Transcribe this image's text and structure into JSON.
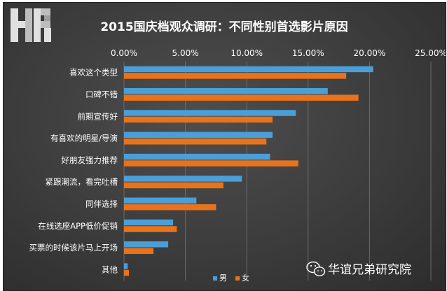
{
  "brand": {
    "logo_text": "HR"
  },
  "watermark": {
    "text": "华谊兄弟研究院"
  },
  "colors": {
    "male": "#4a9fd8",
    "female": "#e8731c",
    "grid": "#6a6a6a",
    "text": "#ffffff"
  },
  "chart_data": {
    "type": "bar",
    "orientation": "horizontal",
    "title": "2015国庆档观众调研：不同性别首选影片原因",
    "xlim": [
      0,
      0.25
    ],
    "xticks": [
      "0.00%",
      "5.00%",
      "10.00%",
      "15.00%",
      "20.00%",
      "25.00%"
    ],
    "xtick_values": [
      0,
      0.05,
      0.1,
      0.15,
      0.2,
      0.25
    ],
    "categories": [
      "喜欢这个类型",
      "口碑不错",
      "前期宣传好",
      "有喜欢的明星/导演",
      "好朋友强力推荐",
      "紧跟潮流，看完吐槽",
      "同伴选择",
      "在线选座APP低价促销",
      "买票的时候该片马上开场",
      "其他"
    ],
    "series": [
      {
        "name": "男",
        "values": [
          0.203,
          0.166,
          0.14,
          0.121,
          0.119,
          0.096,
          0.059,
          0.04,
          0.036,
          0.003
        ]
      },
      {
        "name": "女",
        "values": [
          0.181,
          0.191,
          0.121,
          0.116,
          0.142,
          0.081,
          0.075,
          0.043,
          0.024,
          0.004
        ]
      }
    ],
    "legend": {
      "position": "bottom",
      "entries": [
        "男",
        "女"
      ]
    },
    "grid": true
  }
}
